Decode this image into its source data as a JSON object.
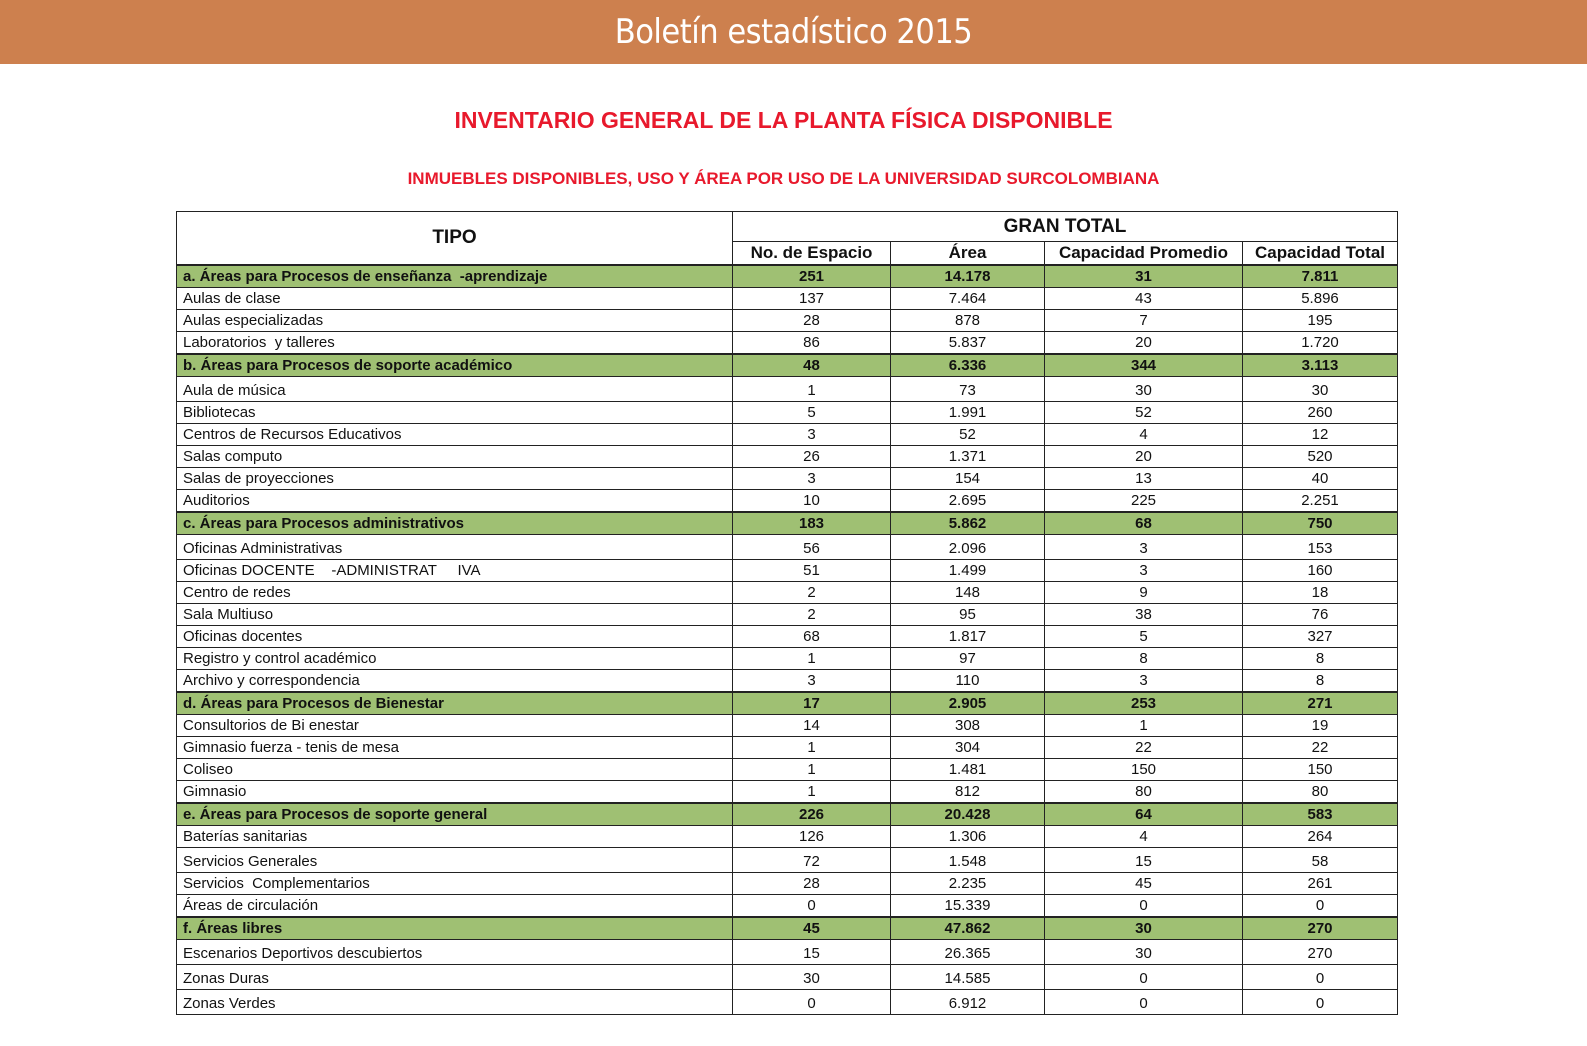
{
  "banner_title": "Boletín estadístico 2015",
  "title": "INVENTARIO GENERAL DE LA PLANTA FÍSICA DISPONIBLE",
  "subtitle": "INMUEBLES DISPONIBLES, USO Y ÁREA POR USO DE LA UNIVERSIDAD SURCOLOMBIANA",
  "table": {
    "tipo_header": "TIPO",
    "group_header": "GRAN TOTAL",
    "columns": [
      "No. de Espacio",
      "Área",
      "Capacidad Promedio",
      "Capacidad Total"
    ],
    "rows": [
      {
        "cat": true,
        "cells": [
          "a. Áreas para Procesos de enseñanza  -aprendizaje",
          "251",
          "14.178",
          "31",
          "7.811"
        ]
      },
      {
        "cells": [
          "Aulas de clase",
          "137",
          "7.464",
          "43",
          "5.896"
        ]
      },
      {
        "cells": [
          "Aulas especializadas",
          "28",
          "878",
          "7",
          "195"
        ]
      },
      {
        "cells": [
          "Laboratorios  y talleres",
          "86",
          "5.837",
          "20",
          "1.720"
        ]
      },
      {
        "cat": true,
        "cells": [
          "b. Áreas para Procesos de soporte académico",
          "48",
          "6.336",
          "344",
          "3.113"
        ]
      },
      {
        "tall": true,
        "cells": [
          "Aula de música",
          "1",
          "73",
          "30",
          "30"
        ]
      },
      {
        "cells": [
          "Bibliotecas",
          "5",
          "1.991",
          "52",
          "260"
        ]
      },
      {
        "cells": [
          "Centros de Recursos Educativos",
          "3",
          "52",
          "4",
          "12"
        ]
      },
      {
        "cells": [
          "Salas computo",
          "26",
          "1.371",
          "20",
          "520"
        ]
      },
      {
        "cells": [
          "Salas de proyecciones",
          "3",
          "154",
          "13",
          "40"
        ]
      },
      {
        "cells": [
          "Auditorios",
          "10",
          "2.695",
          "225",
          "2.251"
        ]
      },
      {
        "cat": true,
        "cells": [
          "c. Áreas para Procesos administrativos",
          "183",
          "5.862",
          "68",
          "750"
        ]
      },
      {
        "tall": true,
        "cells": [
          "Oficinas Administrativas",
          "56",
          "2.096",
          "3",
          "153"
        ]
      },
      {
        "cells": [
          "Oficinas DOCENTE    -ADMINISTRAT     IVA",
          "51",
          "1.499",
          "3",
          "160"
        ]
      },
      {
        "cells": [
          "Centro de redes",
          "2",
          "148",
          "9",
          "18"
        ]
      },
      {
        "cells": [
          "Sala Multiuso",
          "2",
          "95",
          "38",
          "76"
        ]
      },
      {
        "cells": [
          "Oficinas docentes",
          "68",
          "1.817",
          "5",
          "327"
        ]
      },
      {
        "cells": [
          "Registro y control académico",
          "1",
          "97",
          "8",
          "8"
        ]
      },
      {
        "cells": [
          "Archivo y correspondencia",
          "3",
          "110",
          "3",
          "8"
        ]
      },
      {
        "cat": true,
        "cells": [
          "d. Áreas para Procesos de Bienestar",
          "17",
          "2.905",
          "253",
          "271"
        ]
      },
      {
        "cells": [
          "Consultorios de Bi enestar",
          "14",
          "308",
          "1",
          "19"
        ]
      },
      {
        "cells": [
          "Gimnasio fuerza - tenis de mesa",
          "1",
          "304",
          "22",
          "22"
        ]
      },
      {
        "cells": [
          "Coliseo",
          "1",
          "1.481",
          "150",
          "150"
        ]
      },
      {
        "cells": [
          "Gimnasio",
          "1",
          "812",
          "80",
          "80"
        ]
      },
      {
        "cat": true,
        "cells": [
          "e. Áreas para Procesos de soporte general",
          "226",
          "20.428",
          "64",
          "583"
        ]
      },
      {
        "cells": [
          "Baterías sanitarias",
          "126",
          "1.306",
          "4",
          "264"
        ]
      },
      {
        "tall": true,
        "cells": [
          "Servicios Generales",
          "72",
          "1.548",
          "15",
          "58"
        ]
      },
      {
        "cells": [
          "Servicios  Complementarios",
          "28",
          "2.235",
          "45",
          "261"
        ]
      },
      {
        "cells": [
          "Áreas de circulación",
          "0",
          "15.339",
          "0",
          "0"
        ]
      },
      {
        "cat": true,
        "cells": [
          "f. Áreas libres",
          "45",
          "47.862",
          "30",
          "270"
        ]
      },
      {
        "tall": true,
        "cells": [
          "Escenarios Deportivos descubiertos",
          "15",
          "26.365",
          "30",
          "270"
        ]
      },
      {
        "tall": true,
        "cells": [
          "Zonas Duras",
          "30",
          "14.585",
          "0",
          "0"
        ]
      },
      {
        "tall": true,
        "cells": [
          "Zonas Verdes",
          "0",
          "6.912",
          "0",
          "0"
        ]
      }
    ]
  }
}
